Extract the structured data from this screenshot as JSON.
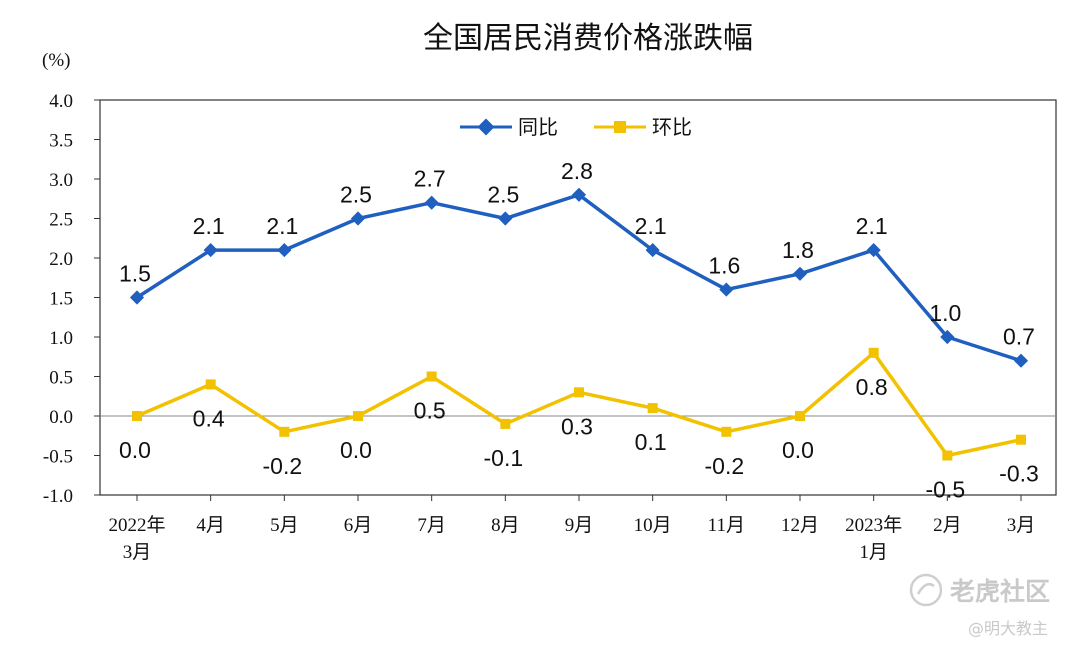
{
  "chart_data": {
    "type": "line",
    "title": "全国居民消费价格涨跌幅",
    "unit_label": "(%)",
    "ylim": [
      -1.0,
      4.0
    ],
    "yticks": [
      "4.0",
      "3.5",
      "3.0",
      "2.5",
      "2.0",
      "1.5",
      "1.0",
      "0.5",
      "0.0",
      "-0.5",
      "-1.0"
    ],
    "ytick_values": [
      4.0,
      3.5,
      3.0,
      2.5,
      2.0,
      1.5,
      1.0,
      0.5,
      0.0,
      -0.5,
      -1.0
    ],
    "categories": [
      [
        "2022年",
        "3月"
      ],
      [
        "4月"
      ],
      [
        "5月"
      ],
      [
        "6月"
      ],
      [
        "7月"
      ],
      [
        "8月"
      ],
      [
        "9月"
      ],
      [
        "10月"
      ],
      [
        "11月"
      ],
      [
        "12月"
      ],
      [
        "2023年",
        "1月"
      ],
      [
        "2月"
      ],
      [
        "3月"
      ]
    ],
    "legend_position": "top-center",
    "series": [
      {
        "name": "同比",
        "color": "#1f5fbf",
        "marker": "diamond",
        "values": [
          1.5,
          2.1,
          2.1,
          2.5,
          2.7,
          2.5,
          2.8,
          2.1,
          1.6,
          1.8,
          2.1,
          1.0,
          0.7
        ],
        "labels": [
          "1.5",
          "2.1",
          "2.1",
          "2.5",
          "2.7",
          "2.5",
          "2.8",
          "2.1",
          "1.6",
          "1.8",
          "2.1",
          "1.0",
          "0.7"
        ],
        "label_position": "above"
      },
      {
        "name": "环比",
        "color": "#f2c200",
        "marker": "square",
        "values": [
          0.0,
          0.4,
          -0.2,
          0.0,
          0.5,
          -0.1,
          0.3,
          0.1,
          -0.2,
          0.0,
          0.8,
          -0.5,
          -0.3
        ],
        "labels": [
          "0.0",
          "0.4",
          "-0.2",
          "0.0",
          "0.5",
          "-0.1",
          "0.3",
          "0.1",
          "-0.2",
          "0.0",
          "0.8",
          "-0.5",
          "-0.3"
        ],
        "label_position": "below"
      }
    ]
  },
  "watermark": {
    "brand": "老虎社区",
    "author": "@明大教主"
  }
}
